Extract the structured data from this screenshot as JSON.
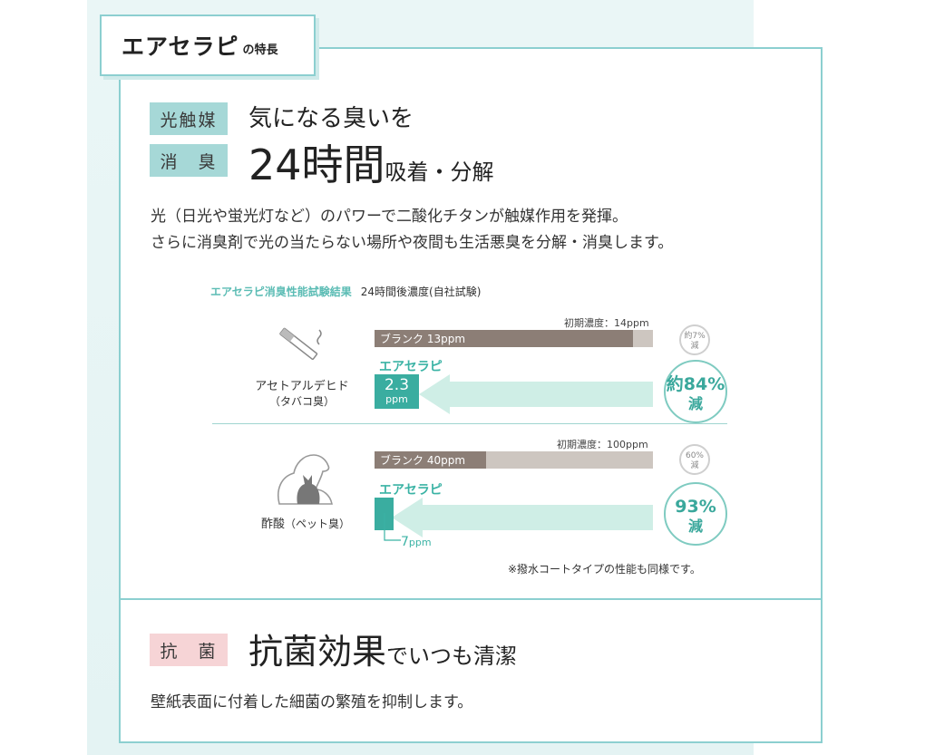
{
  "tab": {
    "title": "エアセラピ",
    "suffix": "の特長"
  },
  "section1": {
    "tags": [
      "光触媒",
      "消　臭"
    ],
    "headline1": "気になる臭いを",
    "headline2_big": "24時間",
    "headline2_small": "吸着・分解",
    "desc1": "光（日光や蛍光灯など）のパワーで二酸化チタンが触媒作用を発揮。",
    "desc2": "さらに消臭剤で光の当たらない場所や夜間も生活悪臭を分解・消臭します。"
  },
  "chart": {
    "title": "エアセラピ消臭性能試験結果",
    "subtitle": "24時間後濃度(自社試験)",
    "footnote": "※撥水コートタイプの性能も同様です。",
    "rows": [
      {
        "label": "アセトアルデヒド",
        "sublabel": "（タバコ臭）",
        "icon": "cigarette-icon",
        "initial_note": "初期濃度：14ppm",
        "blank_label": "ブランク 13ppm",
        "aerusa_label": "エアセラピ",
        "aerusa_value": "2.3",
        "aerusa_unit": "ppm",
        "blank_reduction": "約7%",
        "blank_reduction_unit": "減",
        "reduction": "約84%",
        "reduction_unit": "減"
      },
      {
        "label": "酢酸",
        "sublabel": "（ペット臭）",
        "icon": "pet-icon",
        "initial_note": "初期濃度：100ppm",
        "blank_label": "ブランク 40ppm",
        "aerusa_label": "エアセラピ",
        "aerusa_value": "7",
        "aerusa_unit": "ppm",
        "blank_reduction": "60%",
        "blank_reduction_unit": "減",
        "reduction": "93%",
        "reduction_unit": "減"
      }
    ]
  },
  "chart_data": [
    {
      "type": "bar",
      "categories": [
        "ブランク",
        "エアセラピ"
      ],
      "values": [
        13,
        2.3
      ],
      "initial": 14,
      "ylim": [
        0,
        14
      ]
    },
    {
      "type": "bar",
      "categories": [
        "ブランク",
        "エアセラピ"
      ],
      "values": [
        40,
        7
      ],
      "initial": 100,
      "ylim": [
        0,
        100
      ]
    }
  ],
  "section2": {
    "tag": "抗　菌",
    "headline_big": "抗菌効果",
    "headline_small": "でいつも清潔",
    "desc": "壁紙表面に付着した細菌の繁殖を抑制します。"
  },
  "colors": {
    "teal": "#3aada0",
    "border": "#8ccfd0",
    "blank_dark": "#8c7e76",
    "blank_light": "#cdc6c0",
    "arrow": "#cfeee6"
  }
}
